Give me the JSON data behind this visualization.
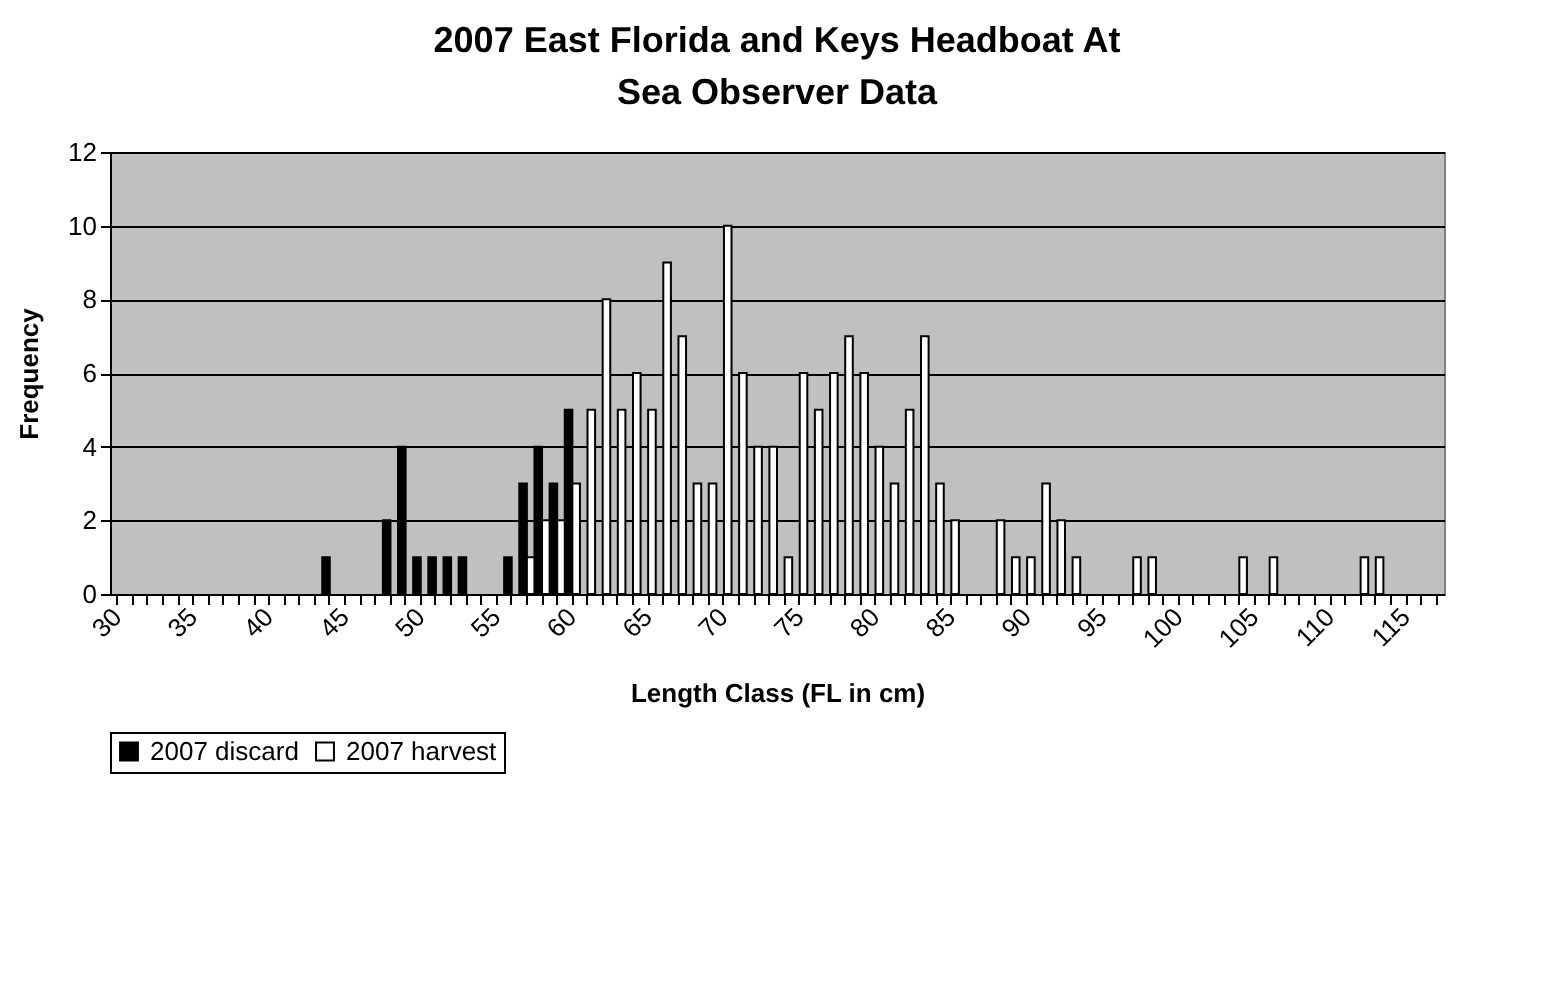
{
  "chart_data": {
    "type": "bar",
    "title": "2007 East Florida and Keys Headboat At Sea Observer Data",
    "xlabel": "Length Class (FL in cm)",
    "ylabel": "Frequency",
    "categories": [
      "30",
      null,
      null,
      null,
      null,
      "35",
      null,
      null,
      null,
      null,
      "40",
      null,
      null,
      null,
      null,
      "45",
      null,
      null,
      null,
      null,
      "50",
      null,
      null,
      null,
      null,
      "55",
      null,
      null,
      null,
      null,
      "60",
      null,
      null,
      null,
      null,
      "65",
      null,
      null,
      null,
      null,
      "70",
      null,
      null,
      null,
      null,
      "75",
      null,
      null,
      null,
      null,
      "80",
      null,
      null,
      null,
      null,
      "85",
      null,
      null,
      null,
      null,
      "90",
      null,
      null,
      null,
      null,
      "95",
      null,
      null,
      null,
      null,
      "100",
      null,
      null,
      null,
      null,
      "105",
      null,
      null,
      null,
      null,
      "110",
      null,
      null,
      null,
      null,
      "115",
      null,
      null
    ],
    "series": [
      {
        "name": "2007 discard",
        "color": "#000000",
        "values": [
          null,
          null,
          null,
          null,
          null,
          null,
          null,
          null,
          null,
          null,
          null,
          null,
          null,
          null,
          1,
          null,
          null,
          null,
          2,
          4,
          1,
          1,
          1,
          1,
          null,
          null,
          1,
          3,
          4,
          3,
          5,
          null,
          null,
          null,
          null,
          null,
          null,
          null,
          null,
          null,
          null,
          null,
          null,
          null,
          null,
          null,
          null,
          null,
          null,
          null,
          null,
          null,
          null,
          null,
          null,
          null,
          null,
          null,
          null,
          null,
          null,
          null,
          null,
          null,
          null,
          null,
          null,
          null,
          null,
          null,
          null,
          null,
          null,
          null,
          null,
          null,
          null,
          null,
          null,
          null,
          null,
          null,
          null,
          null,
          null,
          null,
          null,
          null
        ]
      },
      {
        "name": "2007 harvest",
        "color": "#ffffff",
        "values": [
          null,
          null,
          null,
          null,
          null,
          null,
          null,
          null,
          null,
          null,
          null,
          null,
          null,
          null,
          null,
          null,
          null,
          null,
          null,
          null,
          null,
          null,
          null,
          null,
          null,
          null,
          null,
          1,
          2,
          2,
          3,
          5,
          8,
          5,
          6,
          5,
          9,
          7,
          3,
          3,
          10,
          6,
          4,
          4,
          1,
          6,
          5,
          6,
          7,
          6,
          4,
          3,
          5,
          7,
          3,
          2,
          null,
          null,
          2,
          1,
          1,
          3,
          2,
          1,
          null,
          null,
          null,
          1,
          1,
          null,
          null,
          null,
          null,
          null,
          1,
          null,
          1,
          null,
          null,
          null,
          null,
          null,
          1,
          1,
          null,
          null,
          null,
          null
        ]
      }
    ],
    "ylim": [
      0,
      12
    ],
    "yticks": [
      0,
      2,
      4,
      6,
      8,
      10,
      12
    ],
    "grid": "y",
    "legend": "bottom"
  }
}
